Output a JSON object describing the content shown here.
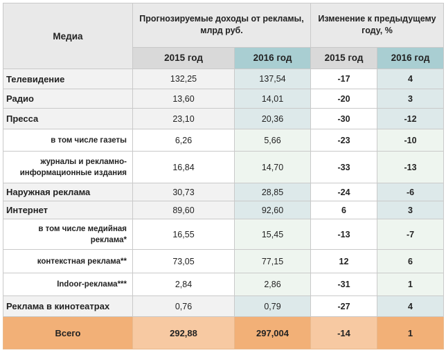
{
  "header": {
    "media": "Медиа",
    "group_revenue": "Прогнозируемые доходы от рекламы, млрд руб.",
    "group_change": "Изменение к предыдущему году, %",
    "year_2015": "2015 год",
    "year_2016": "2016 год"
  },
  "rows": [
    {
      "label": "Телевидение",
      "r2015": "132,25",
      "r2016": "137,54",
      "c2015": "-17",
      "c2016": "4"
    },
    {
      "label": "Радио",
      "r2015": "13,60",
      "r2016": "14,01",
      "c2015": "-20",
      "c2016": "3"
    },
    {
      "label": "Пресса",
      "r2015": "23,10",
      "r2016": "20,36",
      "c2015": "-30",
      "c2016": "-12"
    },
    {
      "label": "в том числе газеты",
      "r2015": "6,26",
      "r2016": "5,66",
      "c2015": "-23",
      "c2016": "-10"
    },
    {
      "label": "журналы и рекламно-информационные издания",
      "r2015": "16,84",
      "r2016": "14,70",
      "c2015": "-33",
      "c2016": "-13"
    },
    {
      "label": "Наружная реклама",
      "r2015": "30,73",
      "r2016": "28,85",
      "c2015": "-24",
      "c2016": "-6"
    },
    {
      "label": "Интернет",
      "r2015": "89,60",
      "r2016": "92,60",
      "c2015": "6",
      "c2016": "3"
    },
    {
      "label": "в том числе медийная реклама*",
      "r2015": "16,55",
      "r2016": "15,45",
      "c2015": "-13",
      "c2016": "-7"
    },
    {
      "label": "контекстная реклама**",
      "r2015": "73,05",
      "r2016": "77,15",
      "c2015": "12",
      "c2016": "6"
    },
    {
      "label": "Indoor-реклама***",
      "r2015": "2,84",
      "r2016": "2,86",
      "c2015": "-31",
      "c2016": "1"
    },
    {
      "label": "Реклама в кинотеатрах",
      "r2015": "0,76",
      "r2016": "0,79",
      "c2015": "-27",
      "c2016": "4"
    }
  ],
  "total": {
    "label": "Всего",
    "r2015": "292,88",
    "r2016": "297,004",
    "c2015": "-14",
    "c2016": "1"
  }
}
